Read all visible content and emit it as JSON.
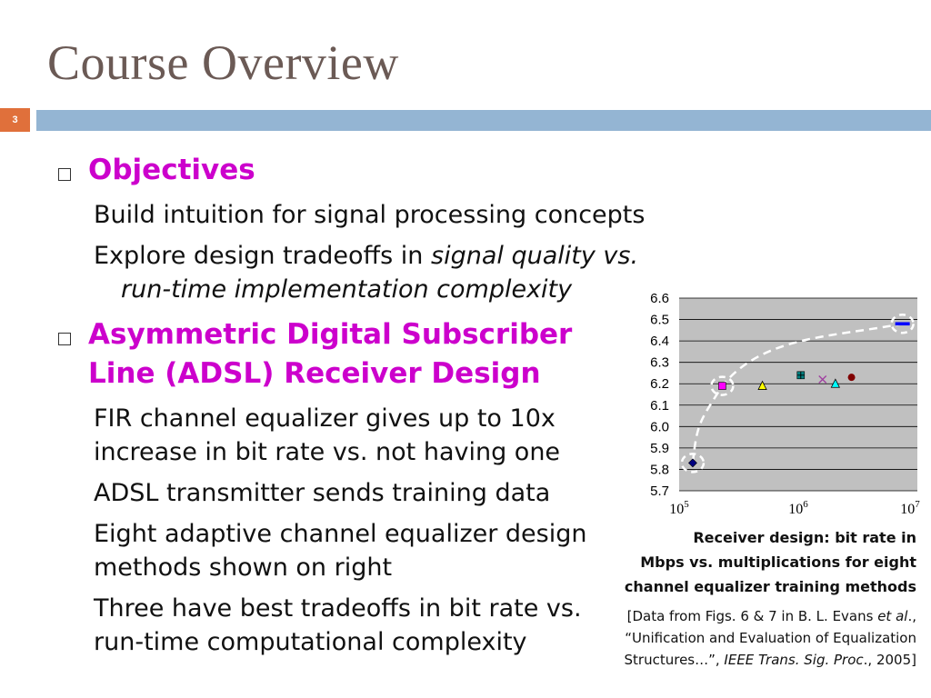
{
  "slide": {
    "title": "Course Overview",
    "number": "3"
  },
  "objectives": {
    "heading": "Objectives",
    "items": [
      "Build intuition for signal processing concepts",
      "Explore design tradeoffs in ",
      "signal quality vs.",
      "run-time implementation complexity"
    ]
  },
  "adsl": {
    "heading_line1": "Asymmetric Digital Subscriber",
    "heading_line2": "Line (ADSL) Receiver Design",
    "items": [
      "FIR channel equalizer gives up to 10x",
      "increase in bit rate vs. not having one",
      "ADSL transmitter sends training data",
      "Eight adaptive channel equalizer design",
      "methods shown on right",
      "Three have best tradeoffs in bit rate vs.",
      "run-time computational complexity"
    ]
  },
  "chart_data": {
    "type": "scatter",
    "ytick_labels": [
      "6.6",
      "6.5",
      "6.4",
      "6.3",
      "6.2",
      "6.1",
      "6.0",
      "5.9",
      "5.8",
      "5.7"
    ],
    "xtick_base": "10",
    "xtick_exponents": [
      "5",
      "6",
      "7"
    ],
    "xscale": "log",
    "xlim": [
      100000,
      10000000
    ],
    "ylim": [
      5.7,
      6.6
    ],
    "grid": true,
    "points": [
      {
        "x": 130000,
        "y": 5.83,
        "marker": "diamond",
        "color": "#000080"
      },
      {
        "x": 230000,
        "y": 6.19,
        "marker": "square",
        "color": "#ff00ff"
      },
      {
        "x": 500000,
        "y": 6.19,
        "marker": "triangle",
        "color": "#ffff00"
      },
      {
        "x": 1050000,
        "y": 6.24,
        "marker": "plus-box",
        "color": "#008080"
      },
      {
        "x": 1600000,
        "y": 6.22,
        "marker": "x",
        "color": "#a040a0"
      },
      {
        "x": 2050000,
        "y": 6.2,
        "marker": "triangle",
        "color": "#00ffff"
      },
      {
        "x": 2800000,
        "y": 6.23,
        "marker": "circle",
        "color": "#800000"
      },
      {
        "x": 7500000,
        "y": 6.48,
        "marker": "dash",
        "color": "#0000ff"
      }
    ],
    "highlighted": [
      0,
      1,
      7
    ],
    "caption_bold": [
      "Receiver design: bit rate in",
      "Mbps vs. multiplications for eight",
      "channel equalizer training methods"
    ],
    "reference": {
      "l1_pre": "[Data from Figs. 6 & 7 in B. L. Evans ",
      "l1_em": "et al",
      "l1_post": ".,",
      "l2": "“Unification and Evaluation of Equalization",
      "l3_pre": "Structures…”, ",
      "l3_em": "IEEE Trans. Sig. Proc",
      "l3_post": "., 2005]"
    }
  }
}
